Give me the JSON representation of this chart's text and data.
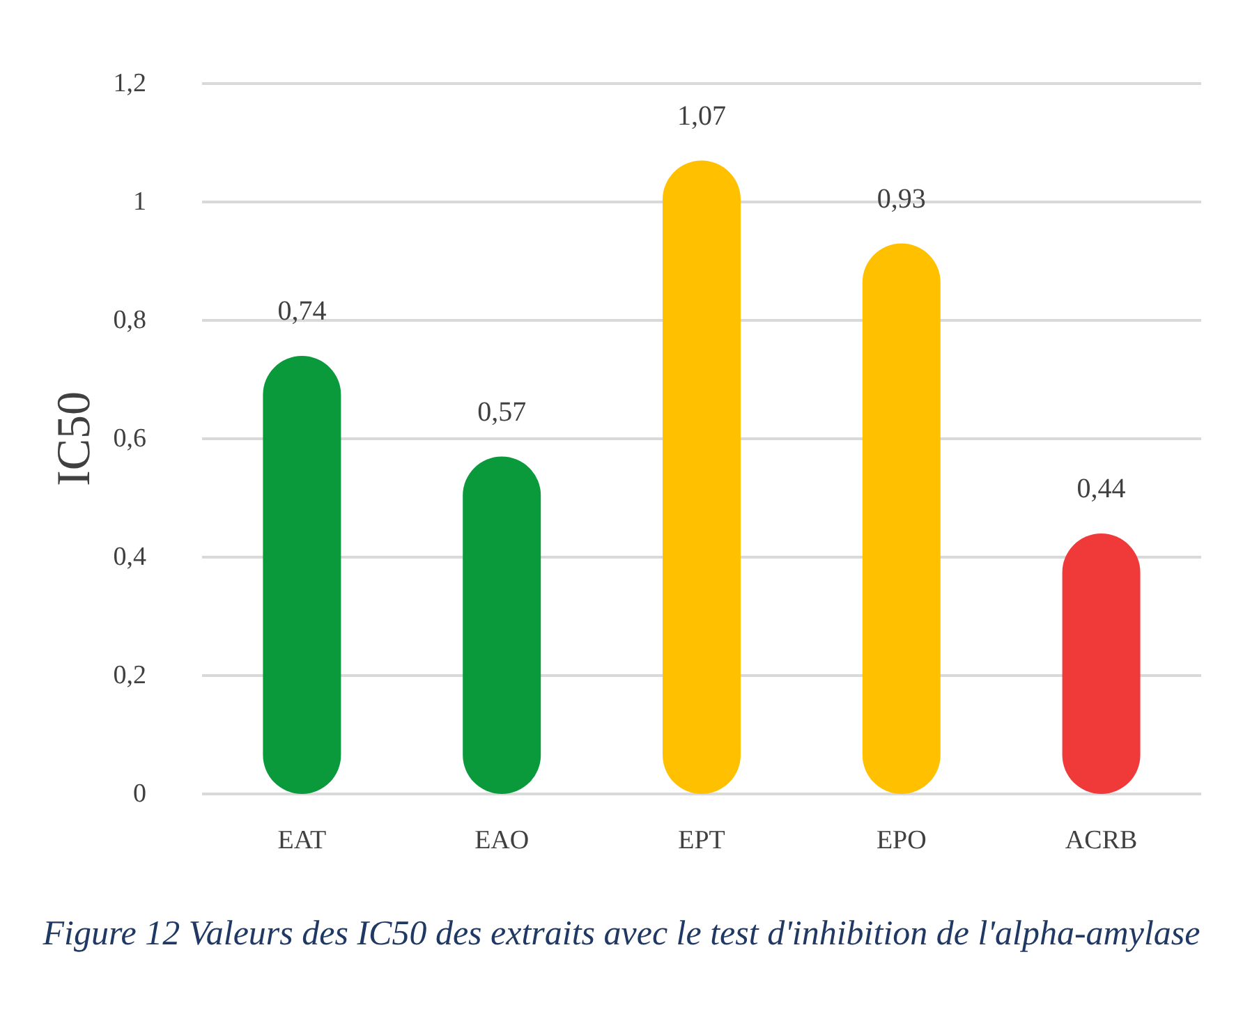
{
  "chart_data": {
    "type": "bar",
    "title": "Figure 12 Valeurs des IC50 des extraits avec le test d'inhibition de l'alpha-amylase",
    "ylabel": "IC50",
    "categories": [
      "EAT",
      "EAO",
      "EPT",
      "EPO",
      "ACRB"
    ],
    "values": [
      0.74,
      0.57,
      1.07,
      0.93,
      0.44
    ],
    "colors": [
      "#0a9a3c",
      "#0a9a3c",
      "#ffc000",
      "#ffc000",
      "#f03a3a"
    ],
    "value_labels": [
      "0,74",
      "0,57",
      "1,07",
      "0,93",
      "0,44"
    ],
    "ylim": [
      0,
      1.2
    ],
    "yticks": [
      {
        "value": 0,
        "label": "0"
      },
      {
        "value": 0.2,
        "label": "0,2"
      },
      {
        "value": 0.4,
        "label": "0,4"
      },
      {
        "value": 0.6,
        "label": "0,6"
      },
      {
        "value": 0.8,
        "label": "0,8"
      },
      {
        "value": 1,
        "label": "1"
      },
      {
        "value": 1.2,
        "label": "1,2"
      }
    ],
    "grid": "y"
  }
}
